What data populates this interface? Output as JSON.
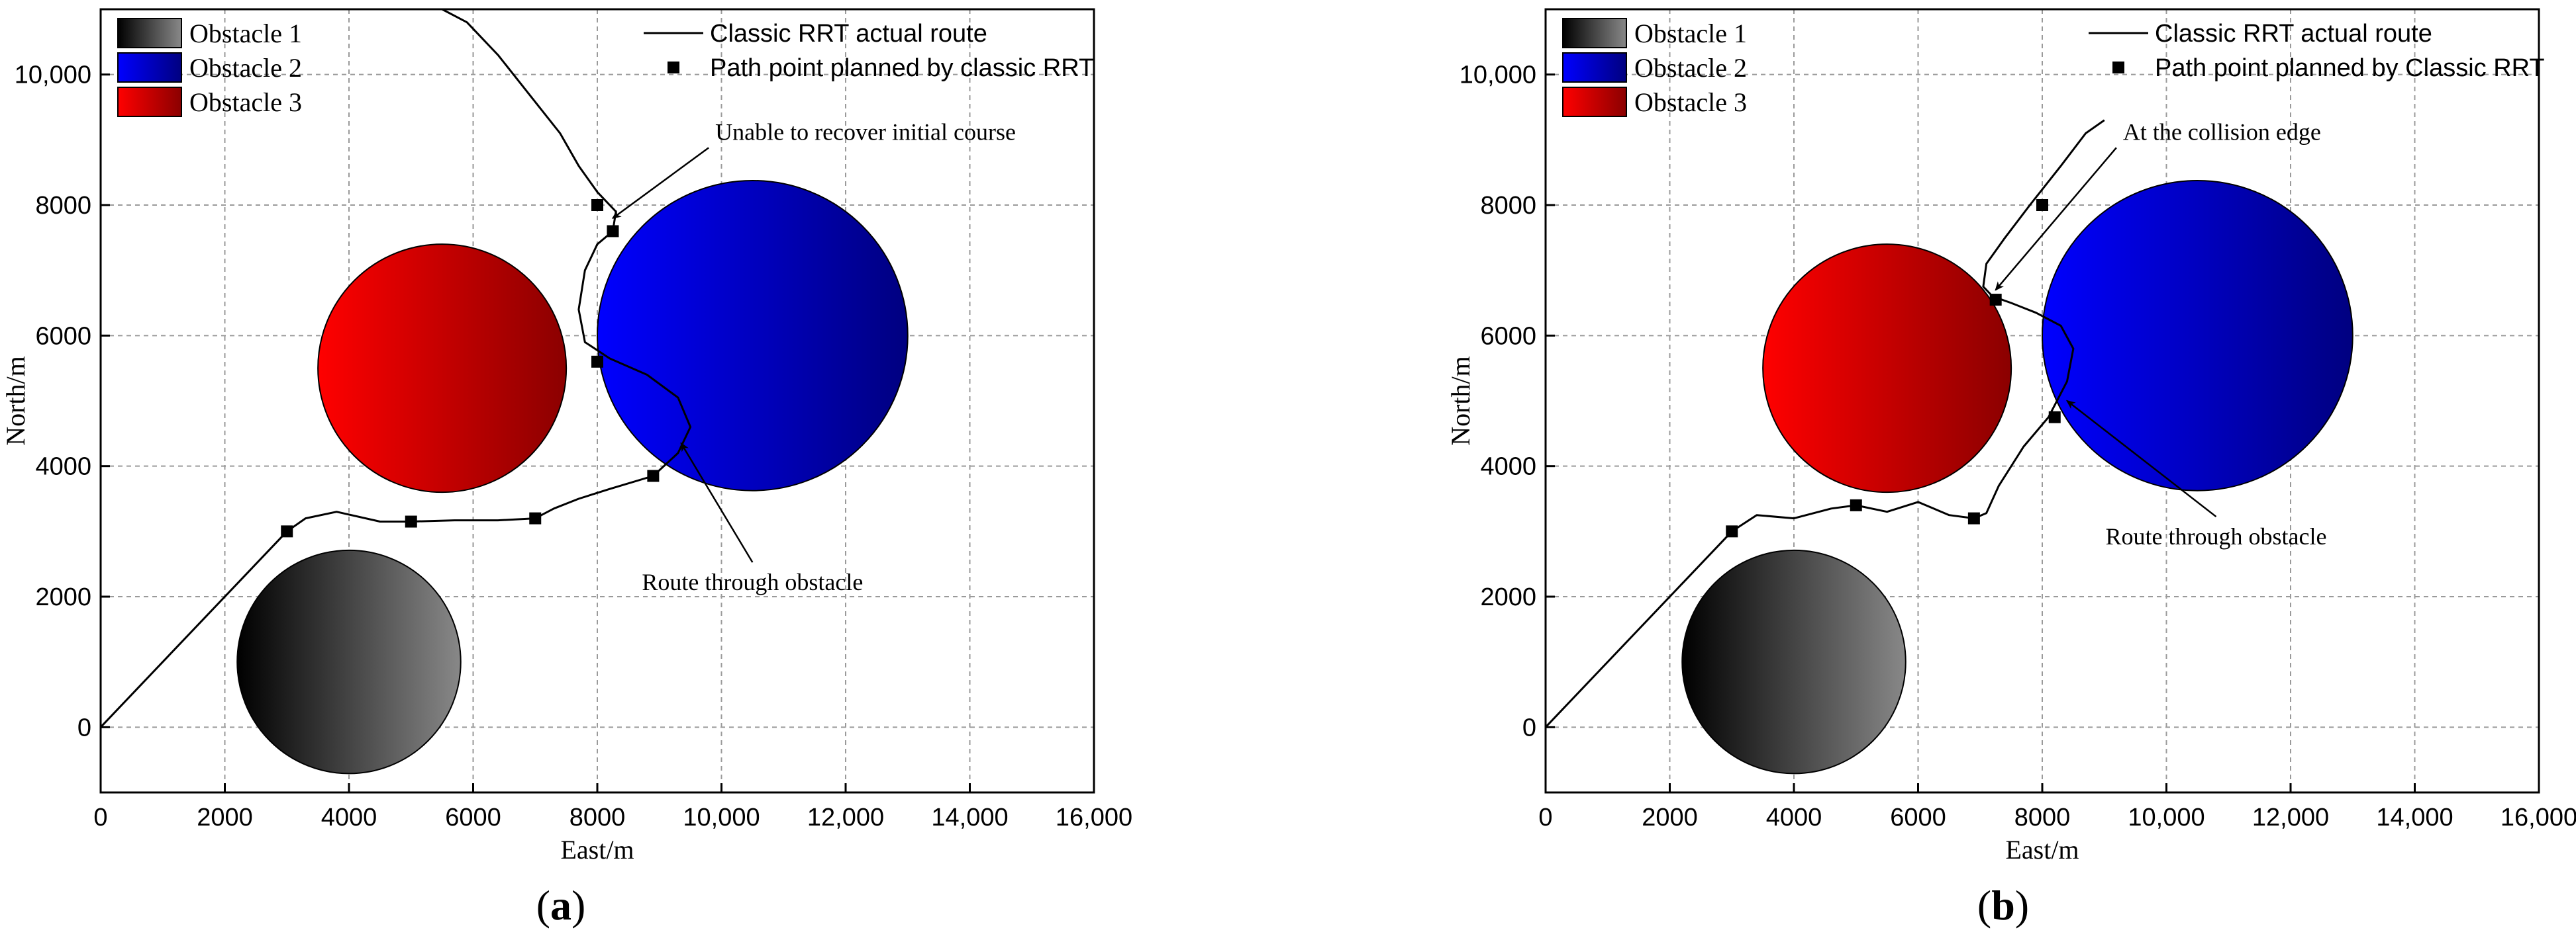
{
  "chart_data": [
    {
      "type": "line",
      "panel_label": "a",
      "xlabel": "East/m",
      "ylabel": "North/m",
      "xlim": [
        0,
        16000
      ],
      "ylim": [
        -1000,
        11000
      ],
      "xticks": [
        0,
        2000,
        4000,
        6000,
        8000,
        10000,
        12000,
        14000,
        16000
      ],
      "xtick_labels": [
        "0",
        "2000",
        "4000",
        "6000",
        "8000",
        "10,000",
        "12,000",
        "14,000",
        "16,000"
      ],
      "yticks": [
        0,
        2000,
        4000,
        6000,
        8000,
        10000
      ],
      "ytick_labels": [
        "0",
        "2000",
        "4000",
        "6000",
        "8000",
        "10,000"
      ],
      "grid": true,
      "legend_position": "top-left and top-right",
      "obstacles": [
        {
          "name": "Obstacle 1",
          "cx": 4000,
          "cy": 1000,
          "r": 1800,
          "color_from": "#000000",
          "color_to": "#8a8a8a"
        },
        {
          "name": "Obstacle 2",
          "cx": 10500,
          "cy": 6000,
          "r": 2500,
          "color_from": "#0000ff",
          "color_to": "#000080"
        },
        {
          "name": "Obstacle 3",
          "cx": 5500,
          "cy": 5500,
          "r": 2000,
          "color_from": "#ff0000",
          "color_to": "#8b0000"
        }
      ],
      "series": [
        {
          "name": "Classic RRT actual route",
          "mode": "line",
          "x": [
            0,
            3000,
            3300,
            3800,
            4500,
            5000,
            5700,
            6400,
            7000,
            7300,
            7700,
            8200,
            8900,
            9300,
            9500,
            9300,
            8800,
            8200,
            7800,
            7700,
            7800,
            8000,
            8250,
            8300,
            8000,
            7700,
            7400,
            6900,
            6400,
            5900,
            5500
          ],
          "y": [
            0,
            3000,
            3200,
            3300,
            3150,
            3150,
            3170,
            3170,
            3200,
            3350,
            3500,
            3650,
            3850,
            4200,
            4600,
            5050,
            5400,
            5650,
            5900,
            6400,
            7000,
            7400,
            7600,
            7900,
            8200,
            8600,
            9100,
            9700,
            10300,
            10800,
            11000
          ]
        },
        {
          "name": "Path point planned by classic RRT",
          "mode": "markers",
          "x": [
            3000,
            5000,
            7000,
            8900,
            8000,
            8250,
            8000
          ],
          "y": [
            3000,
            3150,
            3200,
            3850,
            5600,
            7600,
            8000
          ]
        }
      ],
      "annotations": [
        {
          "text": "Unable to recover initial course",
          "target_x": 8250,
          "target_y": 7800,
          "text_x": 9900,
          "text_y": 9000,
          "anchor": "start"
        },
        {
          "text": "Route through obstacle",
          "target_x": 9350,
          "target_y": 4350,
          "text_x": 10500,
          "text_y": 2100,
          "anchor": "middle"
        }
      ]
    },
    {
      "type": "line",
      "panel_label": "b",
      "xlabel": "East/m",
      "ylabel": "North/m",
      "xlim": [
        0,
        16000
      ],
      "ylim": [
        -1000,
        11000
      ],
      "xticks": [
        0,
        2000,
        4000,
        6000,
        8000,
        10000,
        12000,
        14000,
        16000
      ],
      "xtick_labels": [
        "0",
        "2000",
        "4000",
        "6000",
        "8000",
        "10,000",
        "12,000",
        "14,000",
        "16,000"
      ],
      "yticks": [
        0,
        2000,
        4000,
        6000,
        8000,
        10000
      ],
      "ytick_labels": [
        "0",
        "2000",
        "4000",
        "6000",
        "8000",
        "10,000"
      ],
      "grid": true,
      "legend_position": "top-left and top-right",
      "obstacles": [
        {
          "name": "Obstacle 1",
          "cx": 4000,
          "cy": 1000,
          "r": 1800,
          "color_from": "#000000",
          "color_to": "#8a8a8a"
        },
        {
          "name": "Obstacle 2",
          "cx": 10500,
          "cy": 6000,
          "r": 2500,
          "color_from": "#0000ff",
          "color_to": "#000080"
        },
        {
          "name": "Obstacle 3",
          "cx": 5500,
          "cy": 5500,
          "r": 2000,
          "color_from": "#ff0000",
          "color_to": "#8b0000"
        }
      ],
      "series": [
        {
          "name": "Classic RRT actual route",
          "mode": "line",
          "x": [
            0,
            3000,
            3400,
            4000,
            4600,
            5000,
            5500,
            6000,
            6500,
            6900,
            7100,
            7300,
            7700,
            8100,
            8400,
            8500,
            8300,
            7900,
            7500,
            7200,
            7050,
            7100,
            7400,
            7800,
            8300,
            8700,
            9000
          ],
          "y": [
            0,
            3000,
            3250,
            3200,
            3350,
            3400,
            3300,
            3450,
            3250,
            3200,
            3280,
            3700,
            4300,
            4750,
            5300,
            5800,
            6150,
            6350,
            6500,
            6600,
            6750,
            7100,
            7500,
            8000,
            8600,
            9100,
            9300
          ],
          "y_note": ""
        },
        {
          "name": "Path point planned by Classic RRT",
          "mode": "markers",
          "x": [
            3000,
            5000,
            6900,
            8200,
            7250,
            8000
          ],
          "y": [
            3000,
            3400,
            3200,
            4750,
            6550,
            8000
          ]
        }
      ],
      "annotations": [
        {
          "text": "At the collision edge",
          "target_x": 7250,
          "target_y": 6700,
          "text_x": 9300,
          "text_y": 9000,
          "anchor": "start"
        },
        {
          "text": "Route through obstacle",
          "target_x": 8400,
          "target_y": 5000,
          "text_x": 10800,
          "text_y": 2800,
          "anchor": "middle"
        }
      ]
    }
  ]
}
